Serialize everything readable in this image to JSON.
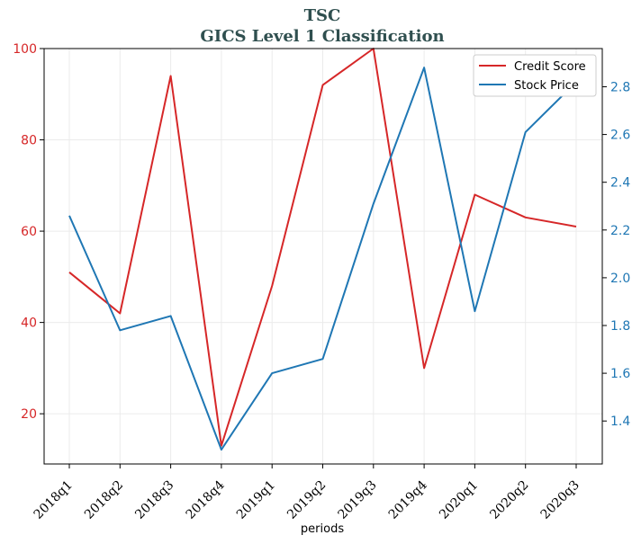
{
  "chart_data": {
    "type": "line",
    "title": "TSC",
    "subtitle": "GICS Level 1 Classification",
    "xlabel": "periods",
    "categories": [
      "2018q1",
      "2018q2",
      "2018q3",
      "2018q4",
      "2019q1",
      "2019q2",
      "2019q3",
      "2019q4",
      "2020q1",
      "2020q2",
      "2020q3"
    ],
    "series": [
      {
        "name": "Credit Score",
        "axis": "left",
        "color": "#d62728",
        "values": [
          51,
          42,
          94,
          13,
          48,
          92,
          100,
          30,
          68,
          63,
          61
        ]
      },
      {
        "name": "Stock Price",
        "axis": "right",
        "color": "#1f77b4",
        "values": [
          2.26,
          1.78,
          1.84,
          1.28,
          1.6,
          1.66,
          2.31,
          2.88,
          1.86,
          2.61,
          2.82
        ]
      }
    ],
    "ylim_left": [
      9,
      100
    ],
    "yticks_left": [
      "20",
      "40",
      "60",
      "80",
      "100"
    ],
    "ylim_right": [
      1.22,
      2.96
    ],
    "yticks_right": [
      "1.4",
      "1.6",
      "1.8",
      "2.0",
      "2.2",
      "2.4",
      "2.6",
      "2.8"
    ],
    "grid": true,
    "legend_position": "upper right"
  }
}
